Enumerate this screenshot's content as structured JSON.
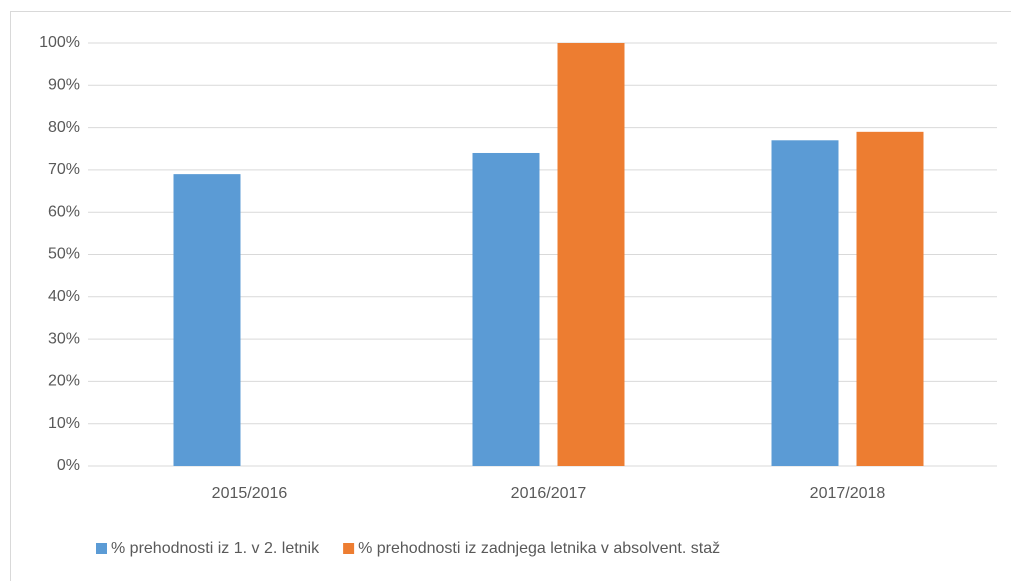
{
  "chart_data": {
    "type": "bar",
    "categories": [
      "2015/2016",
      "2016/2017",
      "2017/2018"
    ],
    "series": [
      {
        "name": "% prehodnosti iz 1. v 2. letnik",
        "color": "#5b9bd5",
        "values": [
          69,
          74,
          77
        ]
      },
      {
        "name": "% prehodnosti iz zadnjega letnika v absolvent. staž",
        "color": "#ed7d31",
        "values": [
          null,
          100,
          79
        ]
      }
    ],
    "ylim": [
      0,
      100
    ],
    "yticks": [
      {
        "value": 0,
        "label": "0%"
      },
      {
        "value": 10,
        "label": "10%"
      },
      {
        "value": 20,
        "label": "20%"
      },
      {
        "value": 30,
        "label": "30%"
      },
      {
        "value": 40,
        "label": "40%"
      },
      {
        "value": 50,
        "label": "50%"
      },
      {
        "value": 60,
        "label": "60%"
      },
      {
        "value": 70,
        "label": "70%"
      },
      {
        "value": 80,
        "label": "80%"
      },
      {
        "value": 90,
        "label": "90%"
      },
      {
        "value": 100,
        "label": "100%"
      }
    ],
    "grid": true,
    "legend": "bottom"
  }
}
